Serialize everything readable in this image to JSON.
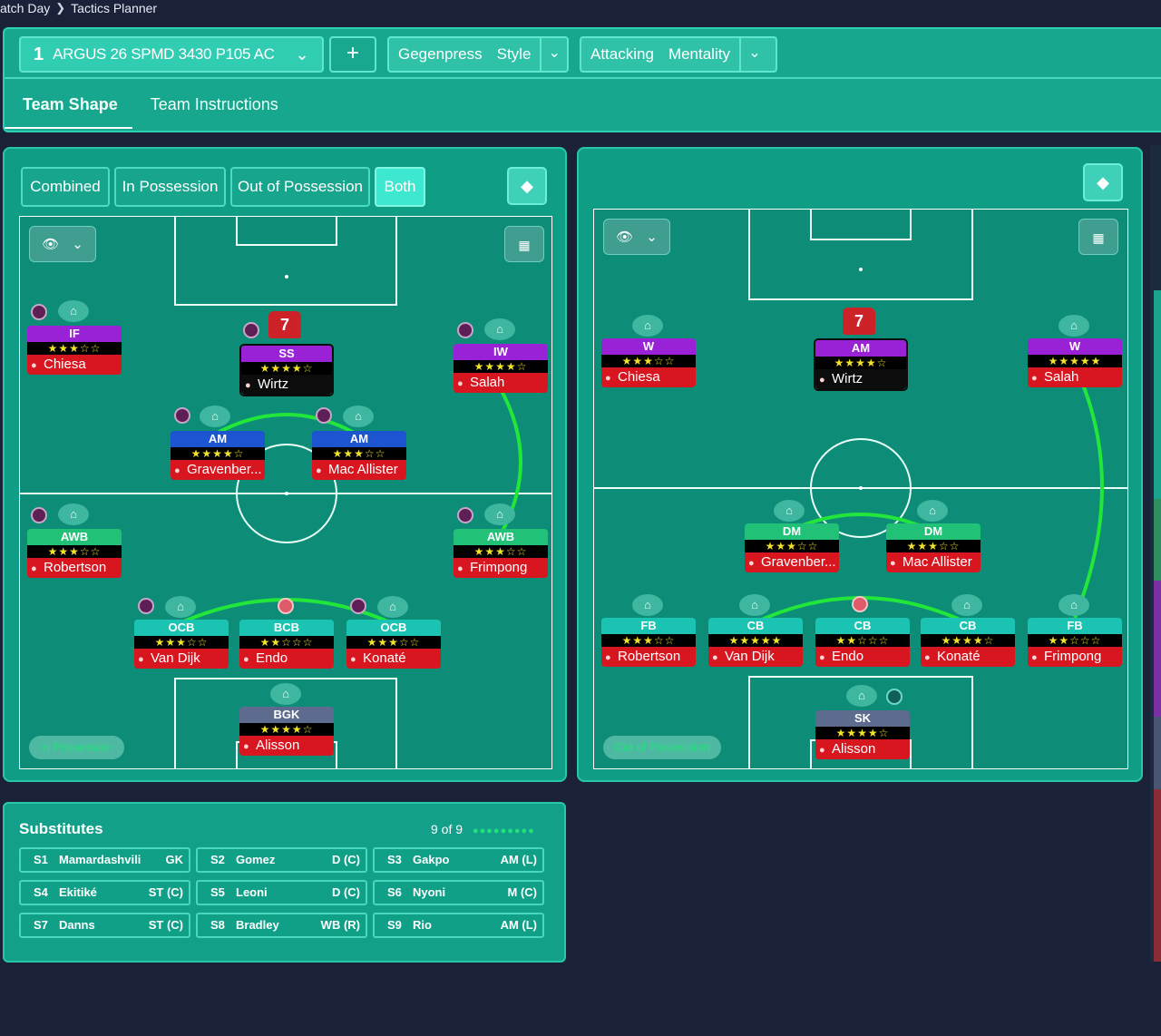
{
  "breadcrumb": {
    "items": [
      "atch Day",
      "Tactics Planner"
    ]
  },
  "tactic": {
    "number": "1",
    "name": "ARGUS 26 SPMD 3430 P105 AC"
  },
  "style": {
    "value": "Gegenpress",
    "label": "Style"
  },
  "mentality": {
    "value": "Attacking",
    "label": "Mentality"
  },
  "tabs": [
    "Team Shape",
    "Team Instructions"
  ],
  "phase_tabs": [
    "Combined",
    "In Possession",
    "Out of Possession",
    "Both"
  ],
  "left_pitch": {
    "phase_label": "In Possession"
  },
  "right_pitch": {
    "phase_label": "Out of Possession"
  },
  "shirt_number": "7",
  "left_players": [
    {
      "role": "IF",
      "stars": "★★★☆☆",
      "name": "Chiesa"
    },
    {
      "role": "SS",
      "stars": "★★★★☆",
      "name": "Wirtz"
    },
    {
      "role": "IW",
      "stars": "★★★★☆",
      "name": "Salah"
    },
    {
      "role": "AM",
      "stars": "★★★★☆",
      "name": "Gravenber..."
    },
    {
      "role": "AM",
      "stars": "★★★☆☆",
      "name": "Mac Allister"
    },
    {
      "role": "AWB",
      "stars": "★★★☆☆",
      "name": "Robertson"
    },
    {
      "role": "AWB",
      "stars": "★★★☆☆",
      "name": "Frimpong"
    },
    {
      "role": "OCB",
      "stars": "★★★☆☆",
      "name": "Van Dijk"
    },
    {
      "role": "BCB",
      "stars": "★★☆☆☆",
      "name": "Endo"
    },
    {
      "role": "OCB",
      "stars": "★★★☆☆",
      "name": "Konaté"
    },
    {
      "role": "BGK",
      "stars": "★★★★☆",
      "name": "Alisson"
    }
  ],
  "right_players": [
    {
      "role": "W",
      "stars": "★★★☆☆",
      "name": "Chiesa"
    },
    {
      "role": "AM",
      "stars": "★★★★☆",
      "name": "Wirtz"
    },
    {
      "role": "W",
      "stars": "★★★★★",
      "name": "Salah"
    },
    {
      "role": "DM",
      "stars": "★★★☆☆",
      "name": "Gravenber..."
    },
    {
      "role": "DM",
      "stars": "★★★☆☆",
      "name": "Mac Allister"
    },
    {
      "role": "FB",
      "stars": "★★★☆☆",
      "name": "Robertson"
    },
    {
      "role": "CB",
      "stars": "★★★★★",
      "name": "Van Dijk"
    },
    {
      "role": "CB",
      "stars": "★★☆☆☆",
      "name": "Endo"
    },
    {
      "role": "CB",
      "stars": "★★★★☆",
      "name": "Konaté"
    },
    {
      "role": "FB",
      "stars": "★★☆☆☆",
      "name": "Frimpong"
    },
    {
      "role": "SK",
      "stars": "★★★★☆",
      "name": "Alisson"
    }
  ],
  "substitutes": {
    "title": "Substitutes",
    "count": "9 of 9",
    "rows": [
      {
        "slot": "S1",
        "name": "Mamardashvili",
        "pos": "GK"
      },
      {
        "slot": "S2",
        "name": "Gomez",
        "pos": "D (C)"
      },
      {
        "slot": "S3",
        "name": "Gakpo",
        "pos": "AM (L)"
      },
      {
        "slot": "S4",
        "name": "Ekitiké",
        "pos": "ST (C)"
      },
      {
        "slot": "S5",
        "name": "Leoni",
        "pos": "D (C)"
      },
      {
        "slot": "S6",
        "name": "Nyoni",
        "pos": "M (C)"
      },
      {
        "slot": "S7",
        "name": "Danns",
        "pos": "ST (C)"
      },
      {
        "slot": "S8",
        "name": "Bradley",
        "pos": "WB (R)"
      },
      {
        "slot": "S9",
        "name": "Rio",
        "pos": "AM (L)"
      }
    ]
  },
  "colors": {
    "accent": "#17a78f",
    "pitch": "#0d8d77",
    "link_line": "#22e63a",
    "player_bar": "#d8161f"
  }
}
